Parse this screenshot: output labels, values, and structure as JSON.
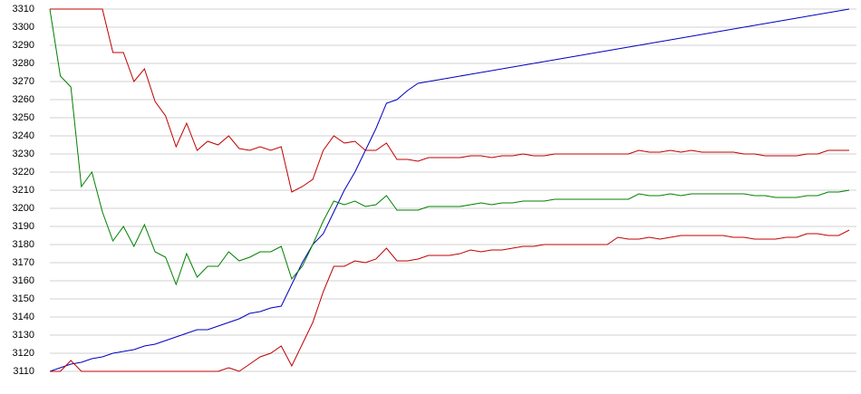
{
  "chart_data": {
    "type": "line",
    "categories": [
      null,
      null,
      null,
      null,
      null,
      null,
      null,
      null,
      null,
      null,
      null,
      null,
      null,
      null,
      null,
      null,
      null,
      null,
      null,
      null,
      null,
      null,
      null,
      null,
      null,
      null,
      null,
      null,
      null,
      null,
      null,
      null,
      null,
      null,
      null,
      null,
      null,
      null,
      null,
      null,
      null,
      null,
      null,
      null,
      null,
      null,
      null,
      null,
      null,
      null,
      null,
      null,
      null,
      null,
      null,
      null,
      null,
      null,
      null,
      null,
      null,
      null,
      null,
      null,
      null,
      null,
      null,
      null,
      null,
      null,
      null,
      null,
      null,
      null,
      null,
      null,
      null
    ],
    "series": [
      {
        "color": "#0000c0",
        "values": [
          3110,
          3112,
          3114,
          3115,
          3117,
          3118,
          3120,
          3121,
          3122,
          3124,
          3125,
          3127,
          3129,
          3131,
          3133,
          3133,
          3135,
          3137,
          3139,
          3142,
          3143,
          3145,
          3146,
          3158,
          3170,
          3180,
          3186,
          3198,
          3210,
          3220,
          3232,
          3244,
          3258,
          3260,
          3265,
          3269,
          3270,
          3271,
          3272,
          3273,
          3274,
          3275,
          3276,
          3277,
          3278,
          3279,
          3280,
          3281,
          3282,
          3283,
          3284,
          3285,
          3286,
          3287,
          3288,
          3289,
          3290,
          3291,
          3292,
          3293,
          3294,
          3295,
          3296,
          3297,
          3298,
          3299,
          3300,
          3301,
          3302,
          3303,
          3304,
          3305,
          3306,
          3307,
          3308,
          3309,
          3310
        ]
      },
      {
        "color": "#c00000",
        "values": [
          3310,
          3310,
          3310,
          3310,
          3310,
          3310,
          3286,
          3286,
          3270,
          3277,
          3259,
          3251,
          3234,
          3247,
          3232,
          3237,
          3235,
          3240,
          3233,
          3232,
          3234,
          3232,
          3234,
          3209,
          3212,
          3216,
          3232,
          3240,
          3236,
          3237,
          3232,
          3232,
          3236,
          3227,
          3227,
          3226,
          3228,
          3228,
          3228,
          3228,
          3229,
          3229,
          3228,
          3229,
          3229,
          3230,
          3229,
          3229,
          3230,
          3230,
          3230,
          3230,
          3230,
          3230,
          3230,
          3230,
          3232,
          3231,
          3231,
          3232,
          3231,
          3232,
          3231,
          3231,
          3231,
          3231,
          3230,
          3230,
          3229,
          3229,
          3229,
          3229,
          3230,
          3230,
          3232,
          3232,
          3232
        ]
      },
      {
        "color": "#008000",
        "values": [
          3310,
          3273,
          3267,
          3212,
          3220,
          3198,
          3182,
          3190,
          3179,
          3191,
          3176,
          3173,
          3158,
          3175,
          3162,
          3168,
          3168,
          3176,
          3171,
          3173,
          3176,
          3176,
          3179,
          3161,
          3168,
          3180,
          3193,
          3204,
          3202,
          3204,
          3201,
          3202,
          3207,
          3199,
          3199,
          3199,
          3201,
          3201,
          3201,
          3201,
          3202,
          3203,
          3202,
          3203,
          3203,
          3204,
          3204,
          3204,
          3205,
          3205,
          3205,
          3205,
          3205,
          3205,
          3205,
          3205,
          3208,
          3207,
          3207,
          3208,
          3207,
          3208,
          3208,
          3208,
          3208,
          3208,
          3208,
          3207,
          3207,
          3206,
          3206,
          3206,
          3207,
          3207,
          3209,
          3209,
          3210
        ]
      },
      {
        "color": "#c00000",
        "values": [
          3110,
          3110,
          3116,
          3110,
          3110,
          3110,
          3110,
          3110,
          3110,
          3110,
          3110,
          3110,
          3110,
          3110,
          3110,
          3110,
          3110,
          3112,
          3110,
          3114,
          3118,
          3120,
          3124,
          3113,
          3125,
          3137,
          3154,
          3168,
          3168,
          3171,
          3170,
          3172,
          3178,
          3171,
          3171,
          3172,
          3174,
          3174,
          3174,
          3175,
          3177,
          3176,
          3177,
          3177,
          3178,
          3179,
          3179,
          3180,
          3180,
          3180,
          3180,
          3180,
          3180,
          3180,
          3184,
          3183,
          3183,
          3184,
          3183,
          3184,
          3185,
          3185,
          3185,
          3185,
          3185,
          3184,
          3184,
          3183,
          3183,
          3183,
          3184,
          3184,
          3186,
          3186,
          3185,
          3185,
          3188
        ]
      }
    ],
    "ylim": [
      3110,
      3310
    ],
    "yticks": [
      3110,
      3120,
      3130,
      3140,
      3150,
      3160,
      3170,
      3180,
      3190,
      3200,
      3210,
      3220,
      3230,
      3240,
      3250,
      3260,
      3270,
      3280,
      3290,
      3300,
      3310
    ],
    "grid": true
  }
}
